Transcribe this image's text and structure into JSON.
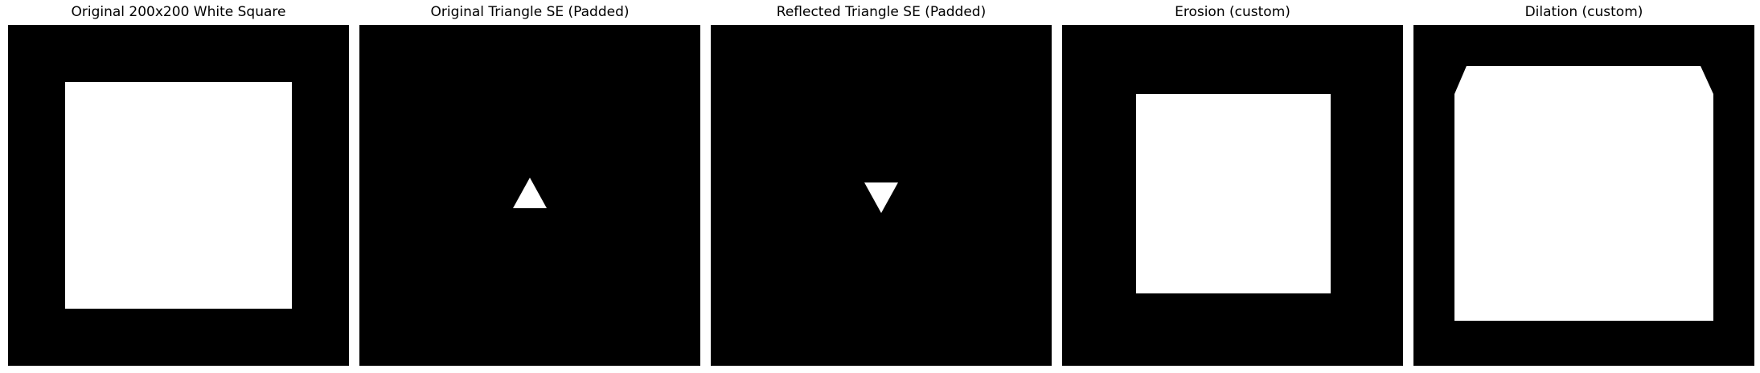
{
  "figure": {
    "background_color": "#ffffff",
    "image_background_color": "#000000",
    "foreground_color": "#ffffff",
    "panels": [
      {
        "title": "Original 200x200 White Square"
      },
      {
        "title": "Original Triangle SE (Padded)"
      },
      {
        "title": "Reflected Triangle SE (Padded)"
      },
      {
        "title": "Erosion (custom)"
      },
      {
        "title": "Dilation (custom)"
      }
    ]
  }
}
